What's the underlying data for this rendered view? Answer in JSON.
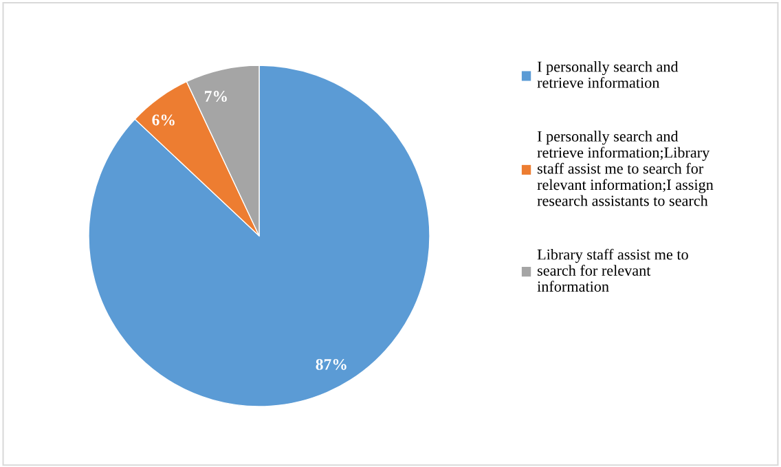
{
  "chart_data": {
    "type": "pie",
    "categories": [
      "I personally search and retrieve information",
      "I personally search and retrieve information;Library staff assist me to search for relevant information;I assign research assistants to search",
      "Library staff assist me to search for relevant information"
    ],
    "values": [
      87,
      6,
      7
    ],
    "colors": [
      "#5b9bd5",
      "#ed7d31",
      "#a5a5a5"
    ],
    "value_labels": [
      "87%",
      "6%",
      "7%"
    ],
    "legend": "right"
  }
}
